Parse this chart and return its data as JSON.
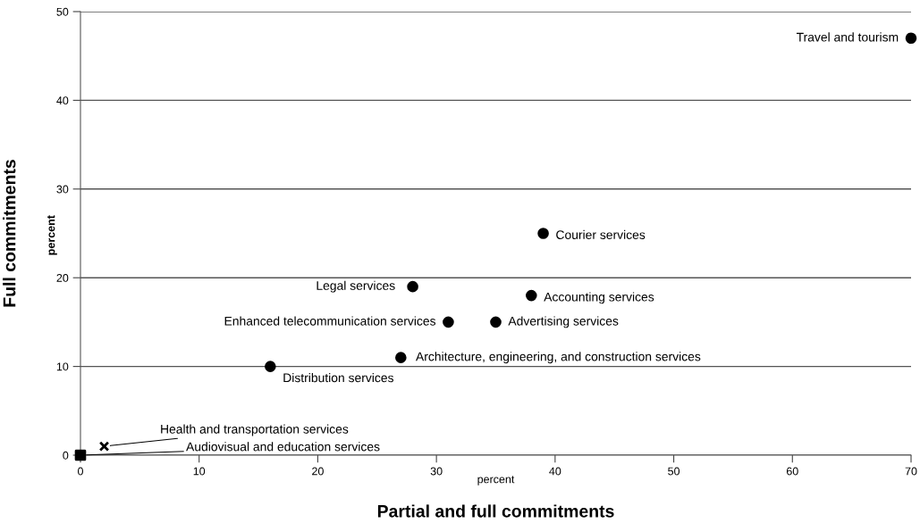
{
  "chart_data": {
    "type": "scatter",
    "xlabel": "Partial and full commitments",
    "ylabel": "Full commitments",
    "xlim": [
      0,
      70
    ],
    "xticks": [
      0,
      10,
      20,
      30,
      40,
      50,
      60,
      70
    ],
    "ylim": [
      0,
      50
    ],
    "yticks": [
      0,
      10,
      20,
      30,
      40,
      50
    ],
    "grid": "y",
    "legend": false,
    "series": [
      {
        "color": "#000000",
        "marker": "circle",
        "x": [
          70,
          39,
          28,
          38,
          31,
          35,
          27,
          16
        ],
        "values": [
          47,
          25,
          19,
          18,
          15,
          15,
          11,
          10
        ]
      },
      {
        "color": "#000000",
        "marker": "cross",
        "x": [
          2
        ],
        "values": [
          1
        ]
      },
      {
        "color": "#000000",
        "marker": "square",
        "x": [
          0
        ],
        "values": [
          0
        ]
      }
    ],
    "annotations": [
      {
        "text": "Travel and tourism",
        "x": 70,
        "y": 47
      },
      {
        "text": "Courier services",
        "x": 39,
        "y": 25
      },
      {
        "text": "Legal services",
        "x": 28,
        "y": 19
      },
      {
        "text": "Accounting services",
        "x": 38,
        "y": 18
      },
      {
        "text": "Enhanced telecommunication services",
        "x": 31,
        "y": 15
      },
      {
        "text": "Advertising services",
        "x": 35,
        "y": 15
      },
      {
        "text": "Architecture, engineering, and construction services",
        "x": 27,
        "y": 11
      },
      {
        "text": "Distribution services",
        "x": 16,
        "y": 10
      },
      {
        "text": "Health and transportation services",
        "x": 2,
        "y": 1
      },
      {
        "text": "Audiovisual and education services",
        "x": 0,
        "y": 0
      },
      "percent",
      "percent"
    ]
  }
}
